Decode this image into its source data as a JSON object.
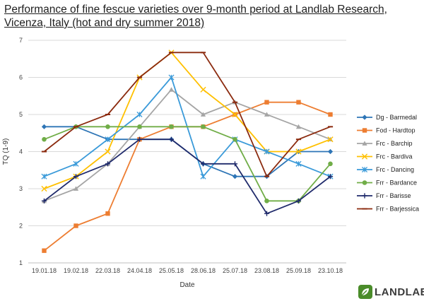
{
  "title_lines": [
    "Performance of fine fescue varieties over 9-month period at Landlab Research,",
    "Vicenza, Italy (hot and dry summer 2018)"
  ],
  "logo": {
    "text": "LANDLAB",
    "color": "#4a8c2a"
  },
  "chart_data": {
    "type": "line",
    "title": "Performance of fine fescue varieties over 9-month period at Landlab Research, Vicenza, Italy (hot and dry summer 2018)",
    "xlabel": "Date",
    "ylabel": "TQ (1-9)",
    "ylim": [
      1,
      7
    ],
    "yticks": [
      1,
      2,
      3,
      4,
      5,
      6,
      7
    ],
    "grid": "horizontal",
    "legend_position": "right",
    "categories": [
      "19.01.18",
      "19.02.18",
      "22.03.18",
      "24.04.18",
      "25.05.18",
      "28.06.18",
      "25.07.18",
      "23.08.18",
      "25.09.18",
      "23.10.18"
    ],
    "series": [
      {
        "name": "Dg - Barmedal",
        "color": "#2e75b6",
        "marker": "diamond",
        "values": [
          4.67,
          4.67,
          4.33,
          4.33,
          4.33,
          3.67,
          3.33,
          3.33,
          4.0,
          4.0
        ]
      },
      {
        "name": "Fod - Hardtop",
        "color": "#ed7d31",
        "marker": "square",
        "values": [
          1.33,
          2.0,
          2.33,
          4.33,
          4.67,
          4.67,
          5.0,
          5.33,
          5.33,
          5.0
        ]
      },
      {
        "name": "Frc - Barchip",
        "color": "#a5a5a5",
        "marker": "triangle",
        "values": [
          2.67,
          3.0,
          3.67,
          4.67,
          5.67,
          5.0,
          5.33,
          5.0,
          4.67,
          4.33
        ]
      },
      {
        "name": "Frc - Bardiva",
        "color": "#ffc000",
        "marker": "x",
        "values": [
          3.0,
          3.33,
          4.0,
          6.0,
          6.67,
          5.67,
          5.0,
          4.0,
          4.0,
          4.33
        ]
      },
      {
        "name": "Frc - Dancing",
        "color": "#3a9ad9",
        "marker": "star",
        "values": [
          3.33,
          3.67,
          4.33,
          5.0,
          6.0,
          3.33,
          4.33,
          4.0,
          3.67,
          3.33
        ]
      },
      {
        "name": "Frr - Bardance",
        "color": "#70ad47",
        "marker": "circle",
        "values": [
          4.33,
          4.67,
          4.67,
          4.67,
          4.67,
          4.67,
          4.33,
          2.67,
          2.67,
          3.67
        ]
      },
      {
        "name": "Frr - Barisse",
        "color": "#1f2a6b",
        "marker": "plus",
        "values": [
          2.67,
          3.33,
          3.67,
          4.33,
          4.33,
          3.67,
          3.67,
          2.33,
          2.67,
          3.33
        ]
      },
      {
        "name": "Frr - Barjessica",
        "color": "#8b2a0e",
        "marker": "dash",
        "values": [
          4.0,
          4.67,
          5.0,
          6.0,
          6.67,
          6.67,
          5.33,
          3.33,
          4.33,
          4.67
        ]
      }
    ]
  }
}
